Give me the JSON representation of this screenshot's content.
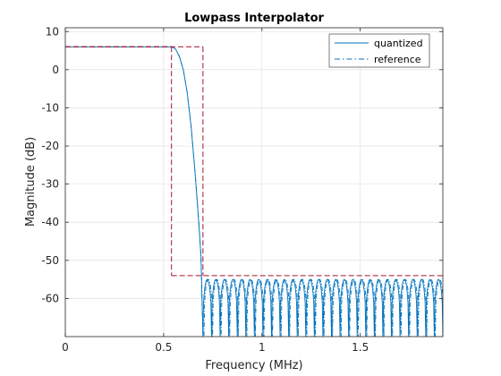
{
  "chart_data": {
    "type": "line",
    "title": "Lowpass Interpolator",
    "xlabel": "Frequency (MHz)",
    "ylabel": "Magnitude (dB)",
    "xlim": [
      0,
      1.92
    ],
    "ylim": [
      -70,
      11
    ],
    "xticks": [
      0,
      0.5,
      1,
      1.5
    ],
    "xtick_labels": [
      "0",
      "0.5",
      "1",
      "1.5"
    ],
    "yticks": [
      10,
      0,
      -10,
      -20,
      -30,
      -40,
      -50,
      -60
    ],
    "ytick_labels": [
      "10",
      "0",
      "-10",
      "-20",
      "-30",
      "-40",
      "-50",
      "-60"
    ],
    "grid": true,
    "legend_position": "top-right",
    "passband_edge_mhz": 0.54,
    "stopband_edge_mhz": 0.7,
    "passband_gain_db": 6,
    "stopband_attenuation_db": -54,
    "series": [
      {
        "name": "quantized",
        "style": "solid",
        "color": "#0072BD",
        "x": [
          0,
          0.54,
          0.56,
          0.58,
          0.6,
          0.62,
          0.64,
          0.66,
          0.68,
          0.69,
          0.7
        ],
        "y": [
          6,
          6,
          5.5,
          3.5,
          0,
          -6,
          -15,
          -27,
          -41,
          -49,
          -70
        ],
        "stopband_lobes": {
          "x_start": 0.7,
          "x_end": 1.92,
          "count": 28,
          "peak_db": -55,
          "floor_db": -70
        }
      },
      {
        "name": "reference",
        "style": "dashdot",
        "color": "#0072BD",
        "x": [
          0,
          0.54,
          0.56,
          0.58,
          0.6,
          0.62,
          0.64,
          0.66,
          0.68,
          0.69,
          0.7
        ],
        "y": [
          6,
          6,
          5.5,
          3.5,
          0,
          -6,
          -15,
          -27,
          -41,
          -49,
          -70
        ],
        "stopband_lobes": {
          "x_start": 0.7,
          "x_end": 1.92,
          "count": 28,
          "peak_db": -55,
          "floor_db": -70
        }
      }
    ],
    "mask": {
      "color": "#A2142F",
      "style": "dashed",
      "passband_upper": {
        "x": [
          0,
          0.7
        ],
        "y": [
          6,
          6
        ]
      },
      "passband_lower": {
        "x": [
          0,
          0.54
        ],
        "y": [
          6,
          6
        ]
      },
      "transition_left": {
        "x": [
          0.54,
          0.54
        ],
        "y": [
          6,
          -54
        ]
      },
      "transition_right": {
        "x": [
          0.7,
          0.7
        ],
        "y": [
          6,
          -54
        ]
      },
      "stopband": {
        "x": [
          0.54,
          1.92
        ],
        "y": [
          -54,
          -54
        ]
      }
    }
  }
}
